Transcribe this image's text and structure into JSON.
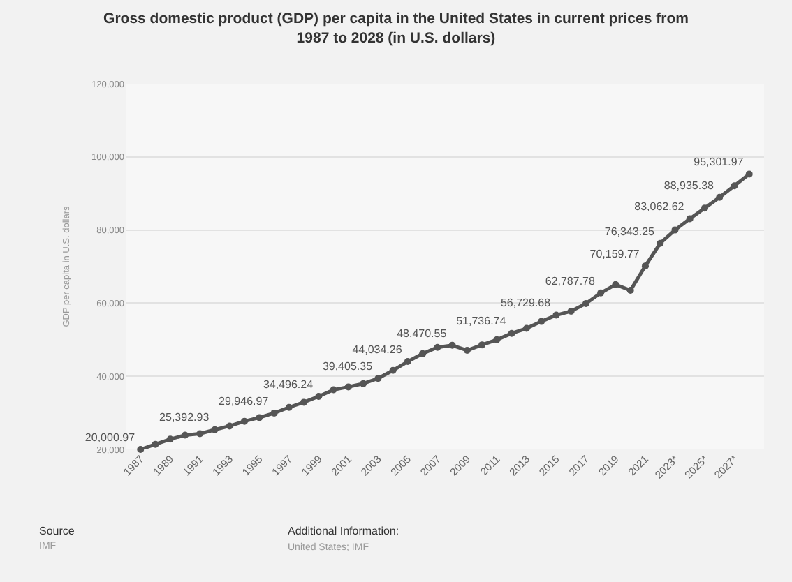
{
  "chart_data": {
    "type": "line",
    "title": "Gross domestic product (GDP) per capita in the United States in current prices from 1987 to 2028 (in U.S. dollars)",
    "ylabel": "GDP per capita in U.S. dollars",
    "categories": [
      "1987",
      null,
      "1989",
      null,
      "1991",
      null,
      "1993",
      null,
      "1995",
      null,
      "1997",
      null,
      "1999",
      null,
      "2001",
      null,
      "2003",
      null,
      "2005",
      null,
      "2007",
      null,
      "2009",
      null,
      "2011",
      null,
      "2013",
      null,
      "2015",
      null,
      "2017",
      null,
      "2019",
      null,
      "2021",
      null,
      "2023*",
      null,
      "2025*",
      null,
      "2027*",
      null
    ],
    "series": [
      {
        "color": "#555555",
        "values": [
          20000.97,
          21400,
          22800,
          23900,
          24300,
          25392.93,
          26400,
          27700,
          28700,
          29946.97,
          31500,
          32900,
          34496.24,
          36300,
          37100,
          38000,
          39405.35,
          41600,
          44034.26,
          46200,
          47900,
          48470.55,
          47100,
          48600,
          50000,
          51736.74,
          53100,
          55000,
          56729.68,
          57800,
          59900,
          62787.78,
          65100,
          63500,
          70159.77,
          76343.25,
          80000,
          83062.62,
          86000,
          88935.38,
          92100,
          95301.97
        ],
        "value_labels": [
          "20,000.97",
          null,
          null,
          null,
          null,
          "25,392.93",
          null,
          null,
          null,
          "29,946.97",
          null,
          null,
          "34,496.24",
          null,
          null,
          null,
          "39,405.35",
          null,
          "44,034.26",
          null,
          null,
          "48,470.55",
          null,
          null,
          null,
          "51,736.74",
          null,
          null,
          "56,729.68",
          null,
          null,
          "62,787.78",
          null,
          null,
          "70,159.77",
          "76,343.25",
          null,
          "83,062.62",
          null,
          "88,935.38",
          null,
          "95,301.97"
        ]
      }
    ],
    "ylim": [
      20000,
      120000
    ],
    "yticks": [
      {
        "value": 20000,
        "label": "20,000"
      },
      {
        "value": 40000,
        "label": "40,000"
      },
      {
        "value": 60000,
        "label": "60,000"
      },
      {
        "value": 80000,
        "label": "80,000"
      },
      {
        "value": 100000,
        "label": "100,000"
      },
      {
        "value": 120000,
        "label": "120,000"
      }
    ],
    "grid": "y",
    "marker": "circle",
    "line_style": "solid",
    "annotations": [
      "Source",
      "IMF",
      "Additional Information:",
      "United States; IMF"
    ]
  }
}
